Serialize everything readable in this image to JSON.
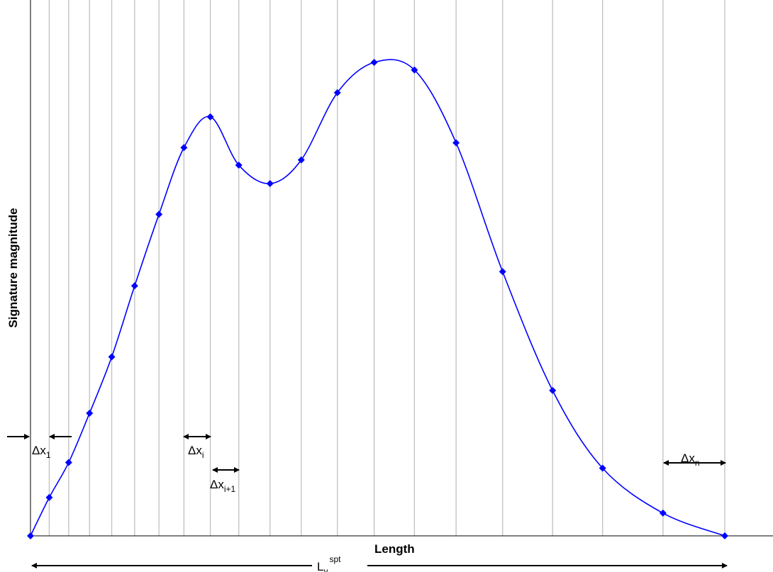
{
  "chart_data": {
    "type": "line",
    "xlabel": "Length",
    "ylabel": "Signature magnitude",
    "grid": {
      "vertical": true,
      "horizontal": false
    },
    "colors": {
      "series": "#0000ff",
      "grid": "#c0c0c0",
      "axis": "#000000"
    },
    "series": [
      {
        "marker": "diamond",
        "points": [
          [
            0.0,
            0.0
          ],
          [
            0.027,
            0.081
          ],
          [
            0.055,
            0.155
          ],
          [
            0.085,
            0.259
          ],
          [
            0.117,
            0.378
          ],
          [
            0.15,
            0.528
          ],
          [
            0.185,
            0.679
          ],
          [
            0.221,
            0.82
          ],
          [
            0.259,
            0.885
          ],
          [
            0.3,
            0.783
          ],
          [
            0.345,
            0.744
          ],
          [
            0.39,
            0.794
          ],
          [
            0.442,
            0.936
          ],
          [
            0.495,
            1.0
          ],
          [
            0.553,
            0.984
          ],
          [
            0.613,
            0.83
          ],
          [
            0.68,
            0.558
          ],
          [
            0.752,
            0.307
          ],
          [
            0.824,
            0.143
          ],
          [
            0.911,
            0.048
          ],
          [
            1.0,
            0.0
          ]
        ]
      }
    ],
    "grid_positions": [
      0.027,
      0.055,
      0.085,
      0.117,
      0.15,
      0.185,
      0.221,
      0.259,
      0.3,
      0.345,
      0.39,
      0.442,
      0.495,
      0.553,
      0.613,
      0.68,
      0.752,
      0.824,
      0.911,
      1.0
    ],
    "annotations": {
      "dx1": {
        "base": "Δx",
        "sub": "1"
      },
      "dxi": {
        "base": "Δx",
        "sub": "i"
      },
      "dxi1": {
        "base": "Δx",
        "sub": "i+1"
      },
      "dxn": {
        "base": "Δx",
        "sub": "n"
      },
      "length_total": {
        "base": "L",
        "sub": "v",
        "sup": "spt"
      }
    }
  }
}
